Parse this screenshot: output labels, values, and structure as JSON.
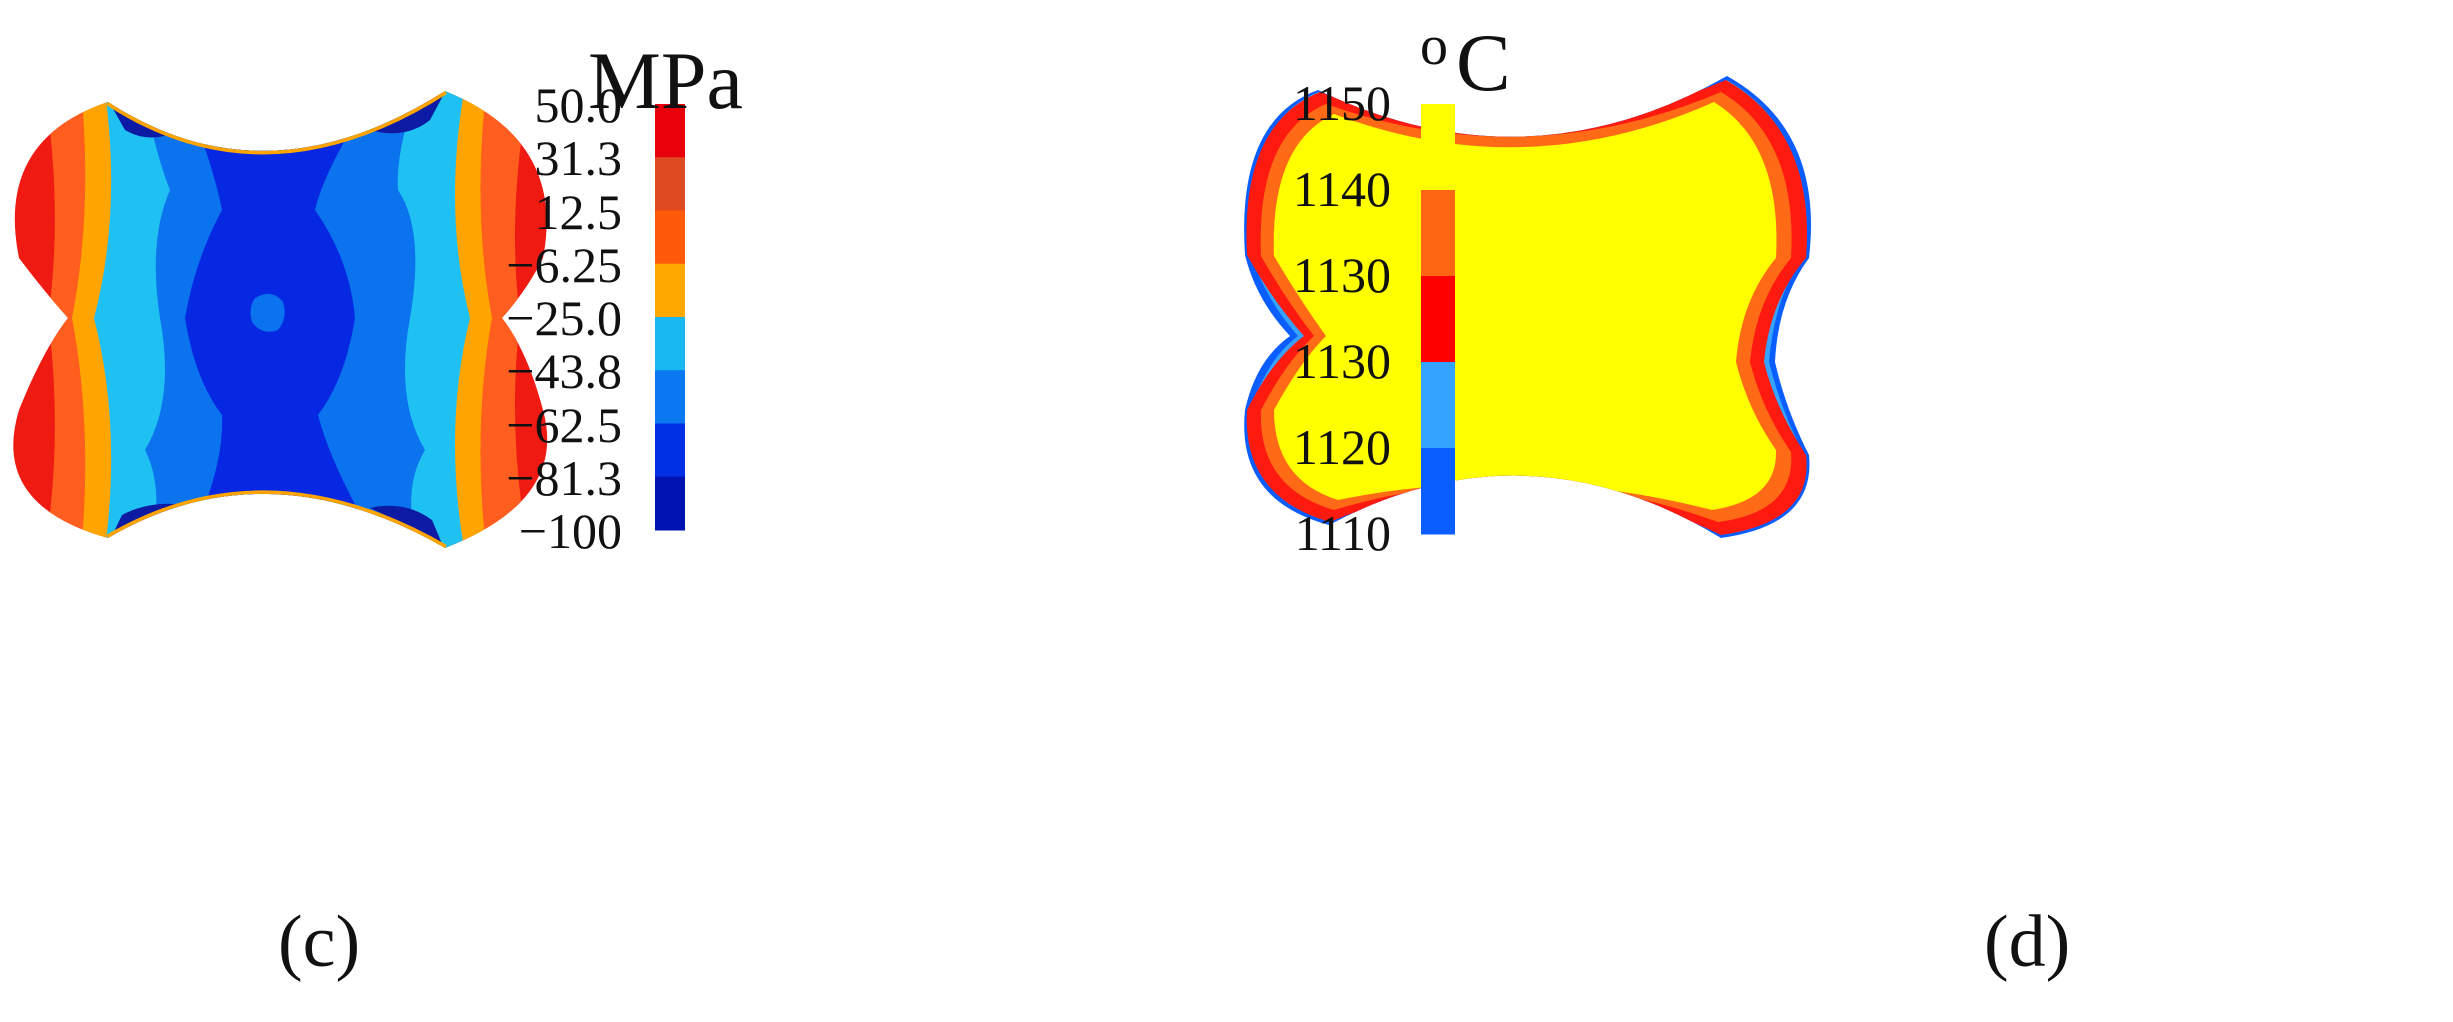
{
  "panel_c": {
    "caption": "(c)",
    "legend": {
      "unit": "MPa",
      "ticks": [
        "50.0",
        "31.3",
        "12.5",
        "−6.25",
        "−25.0",
        "−43.8",
        "−62.5",
        "−81.3",
        "−100"
      ],
      "colors": [
        "#e8000b",
        "#e04a22",
        "#ff5a0a",
        "#ffa800",
        "#1ab8f0",
        "#0a78f0",
        "#0030e6",
        "#0012b0"
      ]
    },
    "colors": {
      "red": "#ef1a12",
      "orange_red": "#ff5e1e",
      "orange": "#ffa400",
      "cyan": "#1fc0f2",
      "blue": "#0b73ee",
      "deep_blue": "#0628e2",
      "navy": "#0c1aa4"
    }
  },
  "panel_d": {
    "caption": "(d)",
    "legend": {
      "unit_superscript": "o",
      "unit": "C",
      "ticks": [
        "1150",
        "1140",
        "1130",
        "1130",
        "1120",
        "1110"
      ],
      "colors": [
        "#ffff00",
        "#ff6614",
        "#ff0000",
        "#33a3ff",
        "#0a5eff"
      ]
    },
    "colors": {
      "yellow": "#ffff00",
      "orange": "#ff6a16",
      "red": "#ff1a10",
      "light_blue": "#35a3ff",
      "blue": "#0a5eff"
    }
  }
}
